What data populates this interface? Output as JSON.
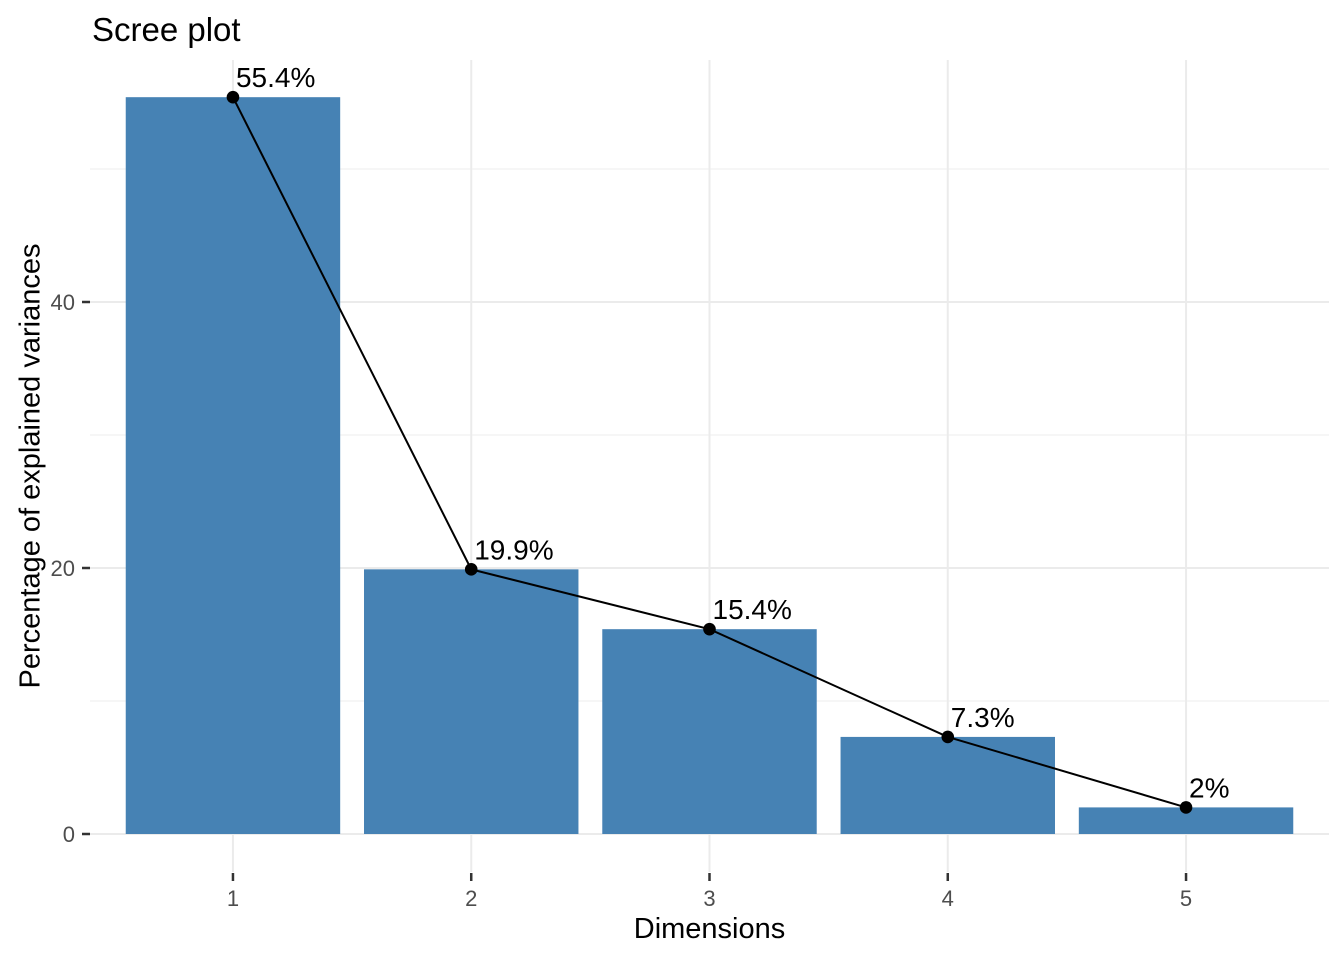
{
  "chart_data": {
    "type": "bar",
    "overlay": "line",
    "title": "Scree plot",
    "xlabel": "Dimensions",
    "ylabel": "Percentage of explained variances",
    "categories": [
      "1",
      "2",
      "3",
      "4",
      "5"
    ],
    "values": [
      55.4,
      19.9,
      15.4,
      7.3,
      2
    ],
    "point_labels": [
      "55.4%",
      "19.9%",
      "15.4%",
      "7.3%",
      "2%"
    ],
    "y_ticks": [
      0,
      20,
      40
    ],
    "y_tick_labels": [
      "0",
      "20",
      "40"
    ],
    "y_minor_ticks": [
      10,
      30,
      50
    ],
    "ylim": [
      0,
      58.2
    ],
    "grid": "major-and-minor-horizontal, major-vertical",
    "legend": "none",
    "colors": {
      "bar_fill": "#4682B4",
      "line": "#000000",
      "point": "#000000",
      "value_label": "#000000",
      "grid_major": "#EBEBEB",
      "grid_minor": "#F4F4F4",
      "tick_mark": "#333333",
      "tick_label": "#4D4D4D",
      "axis_title": "#000000",
      "title": "#000000",
      "background": "#FFFFFF"
    }
  }
}
